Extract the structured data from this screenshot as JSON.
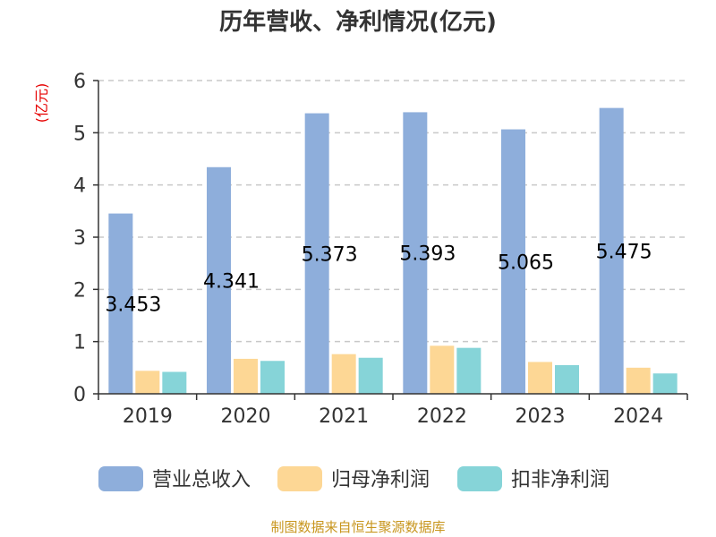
{
  "chart_data": {
    "type": "bar",
    "title": "历年营收、净利情况(亿元)",
    "unit_label": "(亿元)",
    "categories": [
      "2019",
      "2020",
      "2021",
      "2022",
      "2023",
      "2024"
    ],
    "ylim": [
      0,
      6
    ],
    "yticks": [
      "0",
      "1",
      "2",
      "3",
      "4",
      "5",
      "6"
    ],
    "grid": true,
    "legend_position": "bottom",
    "series": [
      {
        "name": "营业总收入",
        "color": "#8eaedb",
        "values": [
          3.453,
          4.341,
          5.373,
          5.393,
          5.065,
          5.475
        ],
        "labels": [
          "3.453",
          "4.341",
          "5.373",
          "5.393",
          "5.065",
          "5.475"
        ]
      },
      {
        "name": "归母净利润",
        "color": "#fdd795",
        "values": [
          0.44,
          0.67,
          0.76,
          0.92,
          0.61,
          0.5
        ]
      },
      {
        "name": "扣非净利润",
        "color": "#86d4d8",
        "values": [
          0.42,
          0.63,
          0.69,
          0.88,
          0.55,
          0.39
        ]
      }
    ],
    "source": "制图数据来自恒生聚源数据库"
  }
}
